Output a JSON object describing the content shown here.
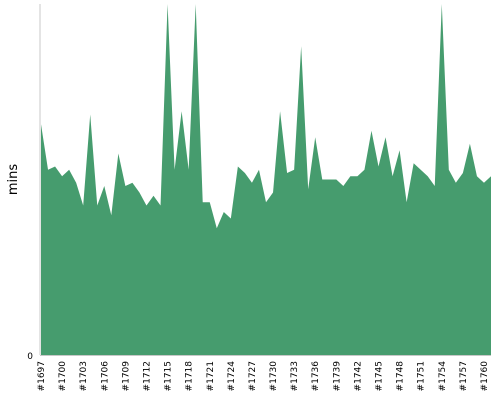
{
  "chart_data": {
    "type": "area",
    "ylabel": "mins",
    "xlabel": "",
    "title": "",
    "ylim_bottom": 0,
    "ytick_labels": [
      "0"
    ],
    "fill_color": "#469c6e",
    "x": [
      "#1697",
      "#1698",
      "#1699",
      "#1700",
      "#1701",
      "#1702",
      "#1703",
      "#1704",
      "#1705",
      "#1706",
      "#1707",
      "#1708",
      "#1709",
      "#1710",
      "#1711",
      "#1712",
      "#1713",
      "#1714",
      "#1715",
      "#1716",
      "#1717",
      "#1718",
      "#1719",
      "#1720",
      "#1721",
      "#1722",
      "#1723",
      "#1724",
      "#1725",
      "#1726",
      "#1727",
      "#1728",
      "#1729",
      "#1730",
      "#1731",
      "#1732",
      "#1733",
      "#1734",
      "#1735",
      "#1736",
      "#1737",
      "#1738",
      "#1739",
      "#1740",
      "#1741",
      "#1742",
      "#1743",
      "#1744",
      "#1745",
      "#1746",
      "#1747",
      "#1748",
      "#1749",
      "#1750",
      "#1751",
      "#1752",
      "#1753",
      "#1754",
      "#1755",
      "#1756",
      "#1757",
      "#1758",
      "#1759",
      "#1760",
      "#1761"
    ],
    "values": [
      71,
      57,
      58,
      55,
      57,
      53,
      46,
      74,
      46,
      52,
      43,
      62,
      52,
      53,
      50,
      46,
      49,
      46,
      108,
      57,
      75,
      57,
      108,
      47,
      47,
      39,
      44,
      42,
      58,
      56,
      53,
      57,
      47,
      50,
      75,
      56,
      57,
      95,
      51,
      67,
      54,
      54,
      54,
      52,
      55,
      55,
      57,
      69,
      58,
      67,
      55,
      63,
      47,
      59,
      57,
      55,
      52,
      108,
      57,
      53,
      56,
      65,
      55,
      53,
      55
    ],
    "xtick_labels": [
      "#1697",
      "#1700",
      "#1703",
      "#1706",
      "#1709",
      "#1712",
      "#1715",
      "#1718",
      "#1721",
      "#1724",
      "#1727",
      "#1730",
      "#1733",
      "#1736",
      "#1739",
      "#1742",
      "#1745",
      "#1748",
      "#1751",
      "#1754",
      "#1757",
      "#1760"
    ]
  }
}
